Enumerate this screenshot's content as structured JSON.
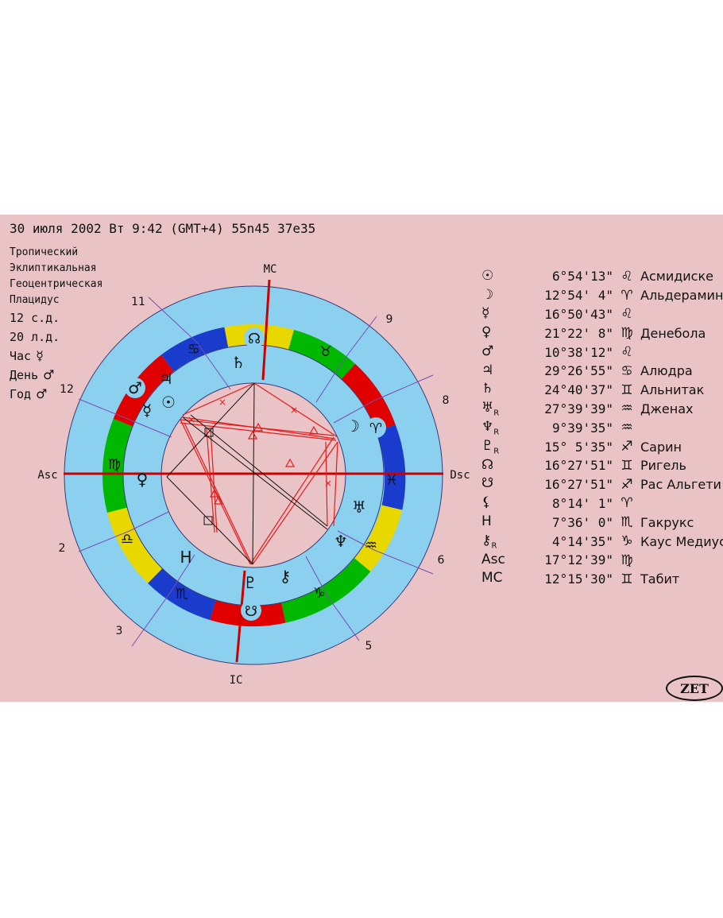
{
  "header": {
    "text": "30 июля 2002  Вт   9:42 (GMT+4) 55n45  37e35"
  },
  "settings": {
    "zodiac": "Тропический",
    "coords": "Эклиптикальная",
    "center": "Геоцентрическая",
    "houses": "Плацидус",
    "lat": "12 с.д.",
    "lon": "20 л.д.",
    "hour_label": "Час",
    "hour_glyph": "☿",
    "day_label": "День",
    "day_glyph": "♂",
    "year_label": "Год",
    "year_glyph": "♂"
  },
  "axes": {
    "mc": "MC",
    "ic": "IC",
    "asc": "Asc",
    "dsc": "Dsc"
  },
  "houses": [
    "11",
    "9",
    "8",
    "12",
    "2",
    "6",
    "3",
    "5"
  ],
  "colors": {
    "panel": "#e9c3c5",
    "ring": "#8bd1ef",
    "axis": "#cc0000",
    "aspect_red": "#e31c1c",
    "aspect_black": "#111111",
    "fire": "#e00000",
    "earth": "#00b800",
    "air": "#e8d800",
    "water": "#1a3ccc"
  },
  "zodiac_signs": [
    "♈",
    "♉",
    "♊",
    "♋",
    "♌",
    "♍",
    "♎",
    "♏",
    "♐",
    "♑",
    "♒",
    "♓"
  ],
  "chart_glyphs": [
    "♂",
    "♃",
    "☿",
    "☉",
    "♄",
    "☽",
    "♅",
    "♆",
    "♀",
    "♇",
    "⚷",
    "☊",
    "☋"
  ],
  "planets": [
    {
      "sym": "☉",
      "r": "",
      "deg": "6°54'13\"",
      "sign": "♌",
      "star": "Асмидиске"
    },
    {
      "sym": "☽",
      "r": "",
      "deg": "12°54' 4\"",
      "sign": "♈",
      "star": "Альдерамин"
    },
    {
      "sym": "☿",
      "r": "",
      "deg": "16°50'43\"",
      "sign": "♌",
      "star": ""
    },
    {
      "sym": "♀",
      "r": "",
      "deg": "21°22' 8\"",
      "sign": "♍",
      "star": "Денебола"
    },
    {
      "sym": "♂",
      "r": "",
      "deg": "10°38'12\"",
      "sign": "♌",
      "star": ""
    },
    {
      "sym": "♃",
      "r": "",
      "deg": "29°26'55\"",
      "sign": "♋",
      "star": "Алюдра"
    },
    {
      "sym": "♄",
      "r": "",
      "deg": "24°40'37\"",
      "sign": "♊",
      "star": "Альнитак"
    },
    {
      "sym": "♅",
      "r": "R",
      "deg": "27°39'39\"",
      "sign": "♒",
      "star": "Дженах"
    },
    {
      "sym": "♆",
      "r": "R",
      "deg": "9°39'35\"",
      "sign": "♒",
      "star": ""
    },
    {
      "sym": "♇",
      "r": "R",
      "deg": "15° 5'35\"",
      "sign": "♐",
      "star": "Сарин"
    },
    {
      "sym": "☊",
      "r": "",
      "deg": "16°27'51\"",
      "sign": "♊",
      "star": "Ригель"
    },
    {
      "sym": "☋",
      "r": "",
      "deg": "16°27'51\"",
      "sign": "♐",
      "star": "Рас Альгети"
    },
    {
      "sym": "⚸",
      "r": "",
      "deg": "8°14' 1\"",
      "sign": "♈",
      "star": ""
    },
    {
      "sym": "H",
      "r": "",
      "deg": "7°36' 0\"",
      "sign": "♏",
      "star": "Гакрукс"
    },
    {
      "sym": "⚷",
      "r": "R",
      "deg": "4°14'35\"",
      "sign": "♑",
      "star": "Каус Медиус"
    },
    {
      "sym": "Asc",
      "r": "",
      "deg": "17°12'39\"",
      "sign": "♍",
      "star": ""
    },
    {
      "sym": "MC",
      "r": "",
      "deg": "12°15'30\"",
      "sign": "♊",
      "star": "Табит"
    }
  ],
  "logo": "ZET"
}
